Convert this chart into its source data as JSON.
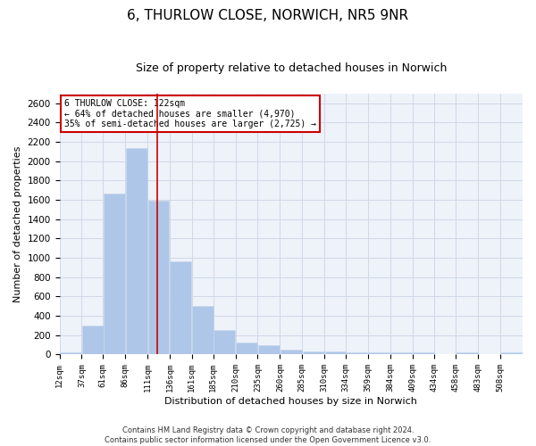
{
  "title": "6, THURLOW CLOSE, NORWICH, NR5 9NR",
  "subtitle": "Size of property relative to detached houses in Norwich",
  "xlabel": "Distribution of detached houses by size in Norwich",
  "ylabel": "Number of detached properties",
  "footnote1": "Contains HM Land Registry data © Crown copyright and database right 2024.",
  "footnote2": "Contains public sector information licensed under the Open Government Licence v3.0.",
  "annotation_line1": "6 THURLOW CLOSE: 122sqm",
  "annotation_line2": "← 64% of detached houses are smaller (4,970)",
  "annotation_line3": "35% of semi-detached houses are larger (2,725) →",
  "bar_color": "#aec6e8",
  "bar_edge_color": "#c8d8ec",
  "property_line_x": 122,
  "categories": [
    "12sqm",
    "37sqm",
    "61sqm",
    "86sqm",
    "111sqm",
    "136sqm",
    "161sqm",
    "185sqm",
    "210sqm",
    "235sqm",
    "260sqm",
    "285sqm",
    "310sqm",
    "334sqm",
    "359sqm",
    "384sqm",
    "409sqm",
    "434sqm",
    "458sqm",
    "483sqm",
    "508sqm"
  ],
  "bin_edges": [
    12,
    37,
    61,
    86,
    111,
    136,
    161,
    185,
    210,
    235,
    260,
    285,
    310,
    334,
    359,
    384,
    409,
    434,
    458,
    483,
    508
  ],
  "bin_width": 25,
  "values": [
    25,
    300,
    1670,
    2140,
    1595,
    960,
    500,
    250,
    120,
    100,
    50,
    35,
    35,
    20,
    20,
    20,
    20,
    0,
    20,
    0,
    25
  ],
  "ylim": [
    0,
    2700
  ],
  "yticks": [
    0,
    200,
    400,
    600,
    800,
    1000,
    1200,
    1400,
    1600,
    1800,
    2000,
    2200,
    2400,
    2600
  ],
  "grid_color": "#d0d8e8",
  "background_color": "#eef2f9",
  "title_fontsize": 11,
  "subtitle_fontsize": 9,
  "xlabel_fontsize": 8,
  "ylabel_fontsize": 8,
  "annotation_box_color": "#ffffff",
  "annotation_box_edge": "#cc0000",
  "vline_color": "#cc0000"
}
